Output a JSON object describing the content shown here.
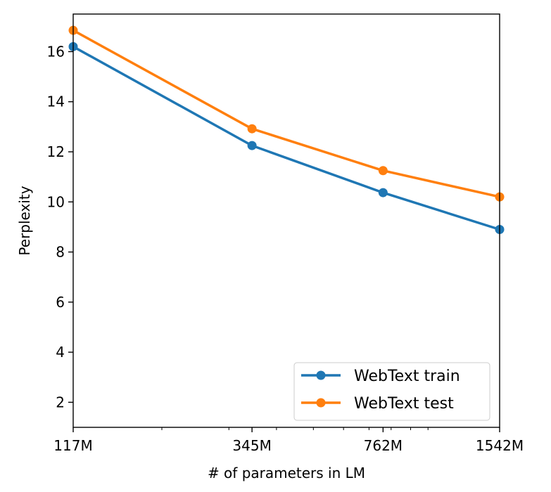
{
  "chart_data": {
    "type": "line",
    "xlabel": "# of parameters in LM",
    "ylabel": "Perplexity",
    "x_scale": "log",
    "x": [
      117,
      345,
      762,
      1542
    ],
    "x_tick_labels": [
      "117M",
      "345M",
      "762M",
      "1542M"
    ],
    "xlim": [
      117,
      1542
    ],
    "ylim": [
      1.0,
      17.5
    ],
    "y_ticks": [
      2,
      4,
      6,
      8,
      10,
      12,
      14,
      16
    ],
    "grid": false,
    "legend_position": "lower-right",
    "series": [
      {
        "name": "WebText train",
        "color": "#1f77b4",
        "values": [
          16.2,
          12.25,
          10.37,
          8.9
        ]
      },
      {
        "name": "WebText test",
        "color": "#ff7f0e",
        "values": [
          16.85,
          12.92,
          11.25,
          10.2
        ]
      }
    ]
  }
}
